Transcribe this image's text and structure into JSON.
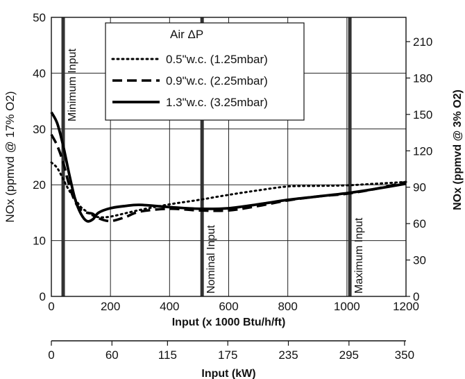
{
  "chart_data": {
    "type": "line",
    "xlabel": "Input (x 1000 Btu/h/ft)",
    "xlabel2": "Input (kW)",
    "ylabel": "NOx (ppmvd @ 17% O2)",
    "ylabel2": "NOx (ppmvd @ 3% O2)",
    "xlim": [
      0,
      1200
    ],
    "ylim": [
      0,
      50
    ],
    "y2lim": [
      0,
      230
    ],
    "x_ticks": [
      "0",
      "200",
      "400",
      "600",
      "800",
      "1000",
      "1200"
    ],
    "y_ticks": [
      "0",
      "10",
      "20",
      "30",
      "40",
      "50"
    ],
    "y2_ticks": [
      "0",
      "30",
      "60",
      "90",
      "120",
      "150",
      "180",
      "210"
    ],
    "x2_ticks": [
      {
        "label": "0",
        "x": 0
      },
      {
        "label": "60",
        "x": 205
      },
      {
        "label": "115",
        "x": 393
      },
      {
        "label": "175",
        "x": 597
      },
      {
        "label": "235",
        "x": 802
      },
      {
        "label": "295",
        "x": 1007
      },
      {
        "label": "350",
        "x": 1195
      }
    ],
    "grid": true,
    "legend": {
      "title": "Air ΔP",
      "position": "top-center",
      "entries": [
        "0.5\"w.c. (1.25mbar)",
        "0.9\"w.c. (2.25mbar)",
        "1.3\"w.c. (3.25mbar)"
      ]
    },
    "markers": [
      {
        "label": "Minimum Input",
        "x": 40
      },
      {
        "label": "Nominal Input",
        "x": 510
      },
      {
        "label": "Maximum Input",
        "x": 1010
      }
    ],
    "series": [
      {
        "name": "0.5\"w.c. (1.25mbar)",
        "style": "dotted",
        "x": [
          0,
          20,
          40,
          60,
          80,
          100,
          120,
          140,
          160,
          200,
          300,
          400,
          500,
          600,
          700,
          800,
          900,
          1000,
          1100,
          1200
        ],
        "y": [
          24,
          23,
          21,
          19,
          17.5,
          16,
          15.2,
          14.5,
          14.2,
          14.3,
          15.5,
          16.5,
          17.3,
          18.2,
          19.0,
          19.7,
          19.8,
          19.9,
          20.2,
          20.5
        ]
      },
      {
        "name": "0.9\"w.c. (2.25mbar)",
        "style": "dashed",
        "x": [
          0,
          20,
          40,
          60,
          80,
          100,
          120,
          140,
          160,
          200,
          250,
          300,
          400,
          500,
          600,
          700,
          800,
          900,
          1000,
          1100,
          1200
        ],
        "y": [
          29,
          27,
          24,
          20,
          17,
          15.5,
          15,
          14.8,
          14,
          13.5,
          14.2,
          15.2,
          15.7,
          15.4,
          15.4,
          16.2,
          17.2,
          17.9,
          18.4,
          19.3,
          20.5
        ]
      },
      {
        "name": "1.3\"w.c. (3.25mbar)",
        "style": "solid",
        "x": [
          0,
          20,
          40,
          60,
          80,
          100,
          120,
          140,
          160,
          200,
          250,
          300,
          400,
          500,
          600,
          700,
          800,
          900,
          1000,
          1100,
          1200
        ],
        "y": [
          33,
          31,
          27,
          22,
          17.5,
          14.8,
          13.5,
          13.8,
          15,
          15.8,
          16.2,
          16.4,
          16.0,
          15.7,
          15.8,
          16.5,
          17.3,
          17.9,
          18.5,
          19.3,
          20.2
        ]
      }
    ]
  }
}
